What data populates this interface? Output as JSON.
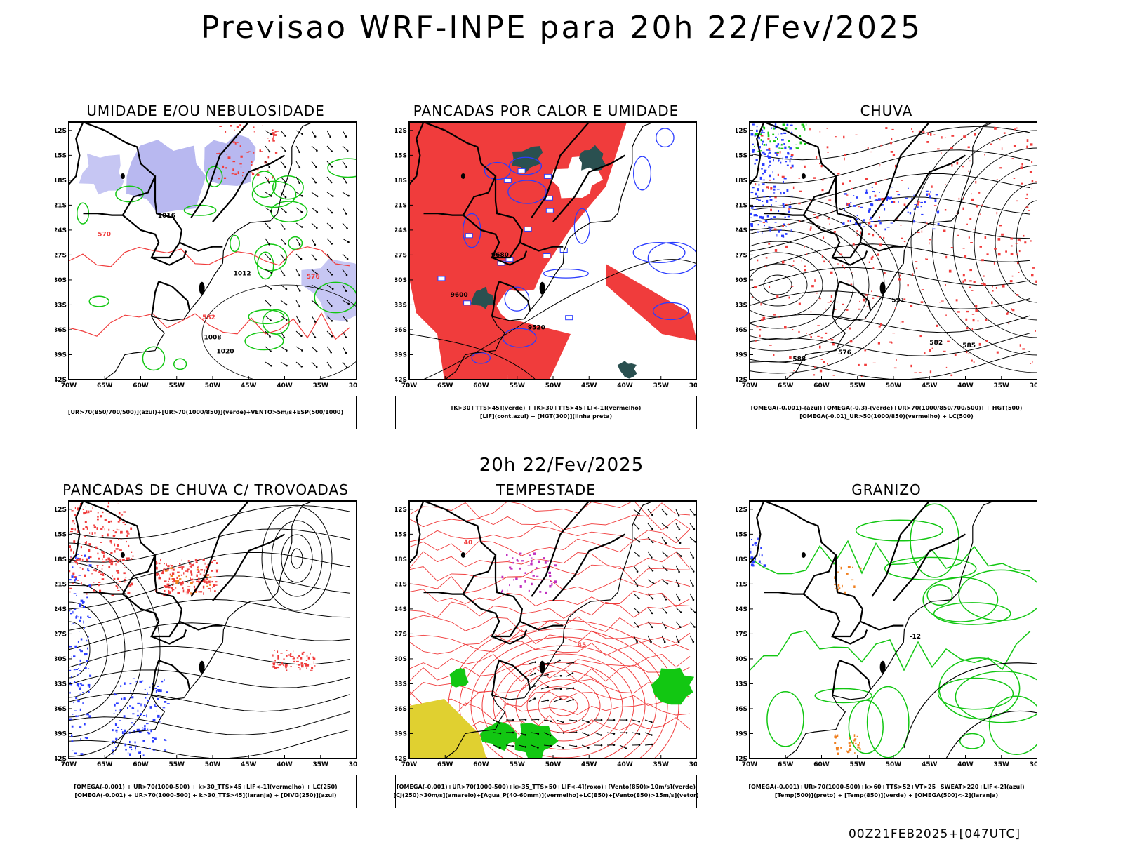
{
  "header": {
    "title": "Previsao WRF-INPE  para 20h 22/Fev/2025"
  },
  "middle": {
    "title": "20h 22/Fev/2025"
  },
  "footer": {
    "stamp": "00Z21FEB2025+[047UTC]"
  },
  "axes": {
    "lat_labels": [
      "12S",
      "15S",
      "18S",
      "21S",
      "24S",
      "27S",
      "30S",
      "33S",
      "36S",
      "39S",
      "42S"
    ],
    "lon_labels": [
      "70W",
      "65W",
      "60W",
      "55W",
      "50W",
      "45W",
      "40W",
      "35W",
      "30W"
    ]
  },
  "panels": [
    {
      "id": "umidade",
      "title": "UMIDADE E/OU NEBULOSIDADE",
      "legend": [
        "[UR>70(850/700/500)](azul)+[UR>70(1000/850)](verde)+VENTO>5m/s+ESP(500/1000)"
      ],
      "labels": [
        "1012",
        "1016",
        "1008",
        "1020",
        "576",
        "582",
        "570"
      ]
    },
    {
      "id": "pancadas-calor",
      "title": "PANCADAS POR CALOR E UMIDADE",
      "legend": [
        "[K>30+TTS>45](verde) + [K>30+TTS>45+LI<-1](vermelho)",
        "[LIF](cont.azul) + [HGT(300)](linha preta)"
      ],
      "labels": [
        "9600",
        "9520",
        "9680"
      ]
    },
    {
      "id": "chuva",
      "title": "CHUVA",
      "legend": [
        "[OMEGA(-0.001)-(azul)+OMEGA(-0.3)-(verde)+UR>70(1000/850/700/500)] + HGT(500)",
        "[OMEGA(-0.01)_UR>50(1000/850)(vermelho) + LC(500)"
      ],
      "labels": [
        "591",
        "588",
        "585",
        "582",
        "576"
      ]
    },
    {
      "id": "trovoadas",
      "title": "PANCADAS DE CHUVA C/ TROVOADAS",
      "legend": [
        "[OMEGA(-0.001) + UR>70(1000-500) + k>30_TTS>45+LIF<-1](vermelho) + LC(250)",
        "[OMEGA(-0.001) + UR>70(1000-500) + k>30_TTS>45](laranja) + [DIVG(250)](azul)"
      ],
      "labels": []
    },
    {
      "id": "tempestade",
      "title": "TEMPESTADE",
      "legend": [
        "[OMEGA(-0.001)+UR>70(1000-500)+k>35_TTS>50+LIF<-4](roxo)+[Vento(850)>10m/s](verde)",
        "[CJ(250)>30m/s](amarelo)+[Agua_P(40-60mm)](vermelho)+LC(850)+[Vento(850)>15m/s](vetor)"
      ],
      "labels": [
        "40",
        "45"
      ]
    },
    {
      "id": "granizo",
      "title": "GRANIZO",
      "legend": [
        "[OMEGA(-0.001)+UR>70(1000-500)+k>60+TTS>52+VT>25+SWEAT>220+LIF<-2](azul)",
        "[Temp(500)](preto) + [Temp(850)](verde) + [OMEGA(500)<-2](laranja)"
      ],
      "labels": [
        "-12"
      ]
    }
  ],
  "colors": {
    "red": "#f03c3c",
    "green": "#12c712",
    "blue": "#2a3cff",
    "lavender": "#b8b8f0",
    "dark_teal": "#2a5050",
    "yellow": "#e0d030",
    "purple": "#c030c0",
    "orange": "#f08020"
  }
}
